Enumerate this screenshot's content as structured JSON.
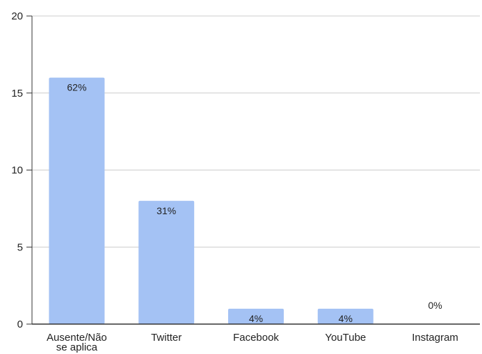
{
  "chart_data": {
    "type": "bar",
    "categories": [
      "Ausente/Não se aplica",
      "Twitter",
      "Facebook",
      "YouTube",
      "Instagram"
    ],
    "values": [
      16,
      8,
      1,
      1,
      0
    ],
    "data_labels": [
      "62%",
      "31%",
      "4%",
      "4%",
      "0%"
    ],
    "y_ticks": [
      "0",
      "5",
      "10",
      "15",
      "20"
    ],
    "ylim": [
      0,
      20
    ],
    "grid": true,
    "legend": "none",
    "colors": {
      "bar": "#a4c2f4",
      "grid": "#cccccc",
      "axis": "#333333"
    }
  }
}
